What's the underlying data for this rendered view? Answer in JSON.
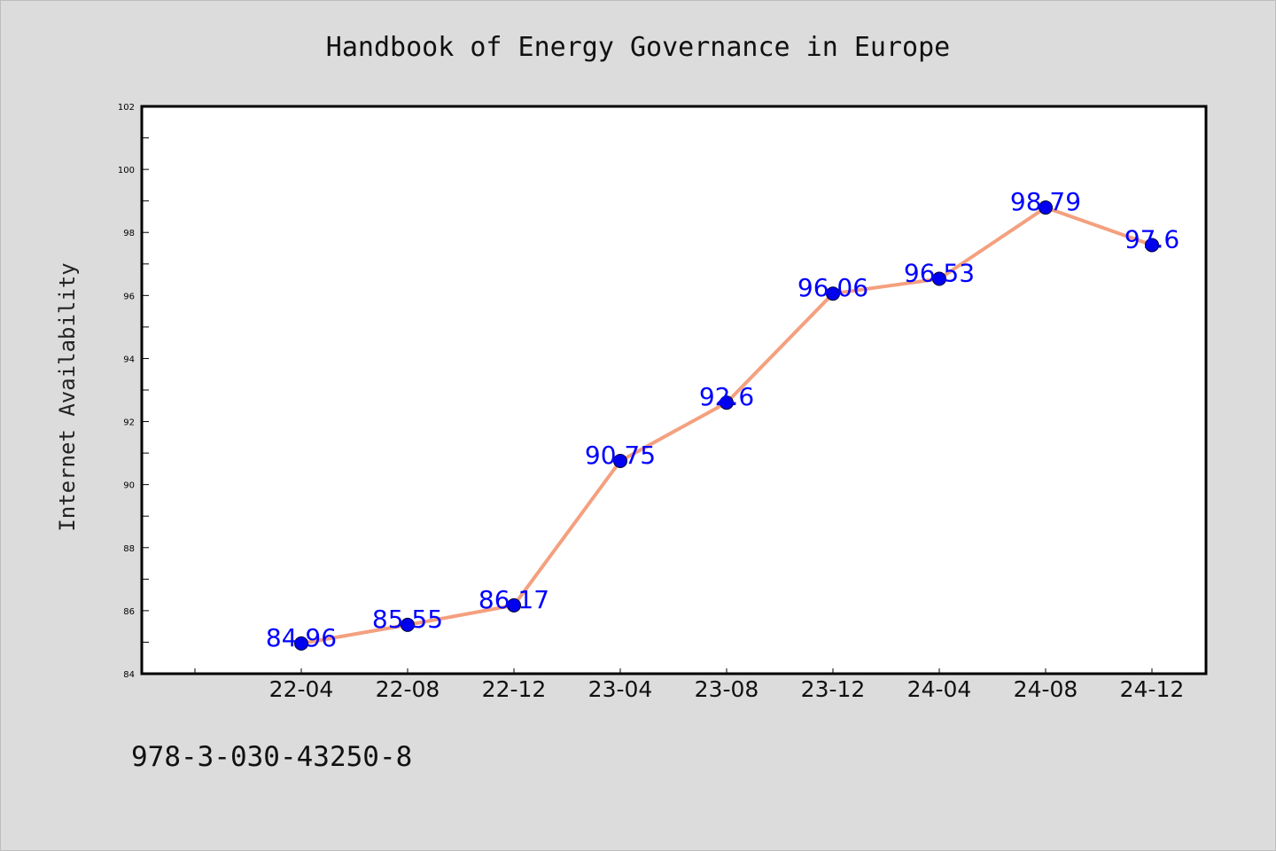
{
  "chart_data": {
    "type": "line",
    "title": "Handbook of Energy Governance in Europe",
    "xlabel": "",
    "ylabel": "Internet Availability",
    "categories": [
      "22-04",
      "22-08",
      "22-12",
      "23-04",
      "23-08",
      "23-12",
      "24-04",
      "24-08",
      "24-12"
    ],
    "series": [
      {
        "values": [
          84.96,
          85.55,
          86.17,
          90.75,
          92.6,
          96.06,
          96.53,
          98.79,
          97.6
        ],
        "line_color": "#f4a07f",
        "marker_color": "#0000ee"
      }
    ],
    "data_labels": [
      "84.96",
      "85.55",
      "86.17",
      "90.75",
      "92.6",
      "96.06",
      "96.53",
      "98.79",
      "97.6"
    ],
    "ylim": [
      84,
      102
    ],
    "yticks": [
      "84",
      "86",
      "88",
      "90",
      "92",
      "94",
      "96",
      "98",
      "100",
      "102"
    ],
    "label_color": "#0000ff",
    "grid": false,
    "legend": "none"
  },
  "footer": {
    "isbn": "978-3-030-43250-8"
  }
}
